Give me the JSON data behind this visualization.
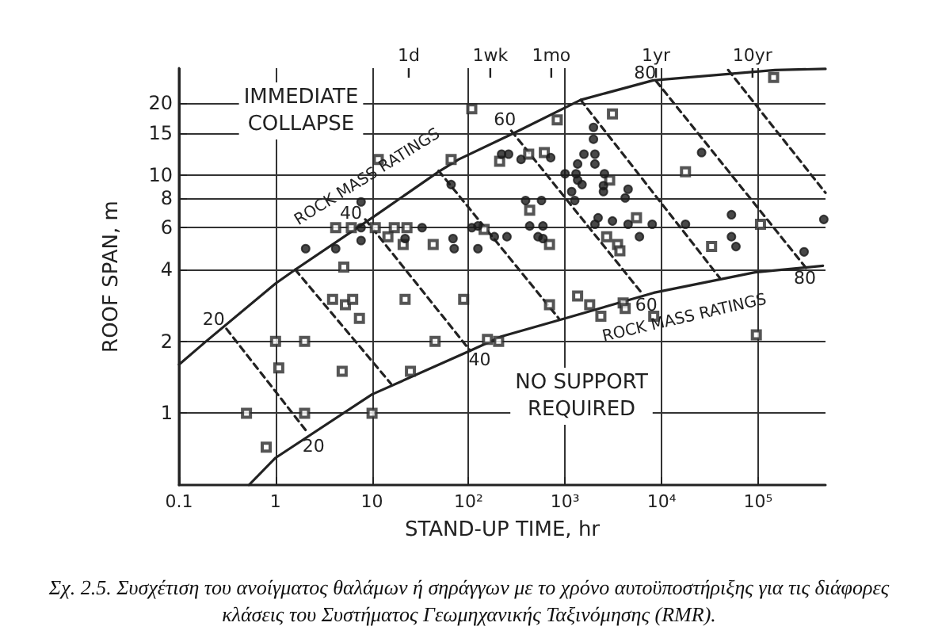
{
  "chart_data": {
    "type": "scatter",
    "xlabel": "STAND-UP TIME, hr",
    "ylabel": "ROOF SPAN, m",
    "log": "xy",
    "grid": true,
    "xlim": [
      0.1,
      500000
    ],
    "xticks": [
      {
        "value": 0.1,
        "label": "0.1"
      },
      1,
      10,
      {
        "value": 100,
        "label": "10²"
      },
      {
        "value": 1000,
        "label": "10³"
      },
      {
        "value": 10000,
        "label": "10⁴"
      },
      {
        "value": 100000,
        "label": "10⁵"
      }
    ],
    "ref_lines": [
      {
        "axis": "x",
        "value": 24,
        "label": "1d"
      },
      {
        "axis": "x",
        "value": 168,
        "label": "1wk"
      },
      {
        "axis": "x",
        "value": 720,
        "label": "1mo"
      },
      {
        "axis": "x",
        "value": 8760,
        "label": "1yr"
      },
      {
        "axis": "x",
        "value": 87600,
        "label": "10yr"
      }
    ],
    "ylim": [
      0.5,
      28
    ],
    "yticks": [
      1,
      2,
      4,
      6,
      8,
      10,
      15,
      20
    ],
    "series": [
      {
        "marker": "square",
        "color": "#2a2a2a",
        "x": [
          4.2,
          6.1,
          10.8,
          17,
          23,
          108,
          11.6,
          14.6,
          21,
          43,
          5.1,
          3.9,
          5.3,
          6.3,
          7.4,
          22,
          89,
          1,
          2,
          45,
          1.08,
          4.9,
          25,
          0.5,
          2,
          10,
          0.8,
          830,
          3100,
          145000,
          66,
          2900,
          5500,
          2700,
          3500,
          3700,
          33000,
          106000,
          17700,
          210,
          420,
          610,
          430,
          690,
          145,
          690,
          1350,
          1800,
          2350,
          4000,
          4200,
          8300,
          96000,
          157,
          205
        ],
        "values": [
          6,
          6,
          6,
          6,
          6,
          18.9,
          11.6,
          5.5,
          5.1,
          5.1,
          4.1,
          3,
          2.85,
          3,
          2.5,
          3,
          3,
          2,
          2,
          2,
          1.55,
          1.5,
          1.5,
          1,
          1,
          1,
          0.72,
          17,
          18,
          25.6,
          11.6,
          9.5,
          6.6,
          5.5,
          5.1,
          4.8,
          5,
          6.2,
          10.3,
          11.4,
          12.2,
          12.4,
          7.1,
          5.1,
          5.9,
          2.85,
          3.1,
          2.85,
          2.55,
          2.9,
          2.75,
          2.55,
          2.13,
          2.04,
          2
        ]
      },
      {
        "marker": "circle",
        "color": "#1a1a1a",
        "x": [
          66,
          7.7,
          7.7,
          33,
          108,
          2.05,
          4.2,
          7.7,
          22,
          71,
          69,
          1970,
          1970,
          1570,
          2040,
          1350,
          2040,
          1000,
          1300,
          1350,
          1500,
          2560,
          2500,
          2500,
          4500,
          4200,
          1170,
          1260,
          2200,
          3100,
          2040,
          4500,
          8000,
          5900,
          17700,
          26000,
          53000,
          53000,
          59000,
          300000,
          480000,
          220,
          260,
          350,
          710,
          390,
          570,
          430,
          590,
          525,
          590,
          125,
          185,
          250,
          125
        ],
        "values": [
          9.1,
          7.7,
          6,
          6,
          6,
          4.9,
          4.9,
          5.3,
          5.4,
          4.9,
          5.4,
          15.8,
          14.1,
          12.2,
          12.2,
          11.1,
          11.1,
          10.1,
          10.1,
          9.5,
          9.1,
          10.1,
          9,
          8.5,
          8.7,
          8,
          8.5,
          7.8,
          6.6,
          6.4,
          6.2,
          6.2,
          6.2,
          5.5,
          6.2,
          12.4,
          6.8,
          5.5,
          5,
          4.75,
          6.5,
          12.2,
          12.2,
          11.6,
          11.8,
          7.8,
          7.8,
          6.1,
          6.1,
          5.5,
          5.4,
          6.1,
          5.5,
          5.5,
          4.9
        ]
      },
      {
        "type": "line",
        "marker": "none",
        "line_style": "solid",
        "color": "#222222",
        "x": [
          0.1,
          0.19,
          1,
          1.6,
          10,
          49,
          79,
          300,
          1450,
          8200,
          150000,
          500000
        ],
        "values": [
          1.6,
          2,
          3.5,
          4,
          6.6,
          10.3,
          11.6,
          15,
          20.6,
          24.9,
          27.5,
          27.8
        ]
      },
      {
        "type": "line",
        "marker": "none",
        "line_style": "solid",
        "color": "#222222",
        "x": [
          0.53,
          1,
          10,
          104,
          220,
          1000,
          8300,
          93000,
          470000
        ],
        "values": [
          0.5,
          0.65,
          1.2,
          1.83,
          2.1,
          2.5,
          3.2,
          3.9,
          4.15
        ]
      },
      {
        "type": "line",
        "marker": "none",
        "line_style": "dashed",
        "color": "#222222",
        "x": [
          0.31,
          2.05
        ],
        "values": [
          2.26,
          0.85
        ]
      },
      {
        "type": "line",
        "marker": "none",
        "line_style": "dashed",
        "color": "#222222",
        "x": [
          1.6,
          15.7
        ],
        "values": [
          4,
          1.33
        ]
      },
      {
        "type": "line",
        "marker": "none",
        "line_style": "dashed",
        "color": "#222222",
        "x": [
          8.5,
          104
        ],
        "values": [
          6.5,
          1.83
        ]
      },
      {
        "type": "line",
        "marker": "none",
        "line_style": "dashed",
        "color": "#222222",
        "x": [
          49,
          860
        ],
        "values": [
          10.4,
          2.5
        ]
      },
      {
        "type": "line",
        "marker": "none",
        "line_style": "dashed",
        "color": "#222222",
        "x": [
          277,
          6200
        ],
        "values": [
          15.3,
          3.2
        ]
      },
      {
        "type": "line",
        "marker": "none",
        "line_style": "dashed",
        "color": "#222222",
        "x": [
          1450,
          40000
        ],
        "values": [
          20.6,
          3.7
        ]
      },
      {
        "type": "line",
        "marker": "none",
        "line_style": "dashed",
        "color": "#222222",
        "x": [
          8800,
          330000
        ],
        "values": [
          24.7,
          3.97
        ]
      },
      {
        "type": "line",
        "marker": "none",
        "line_style": "dashed",
        "color": "#222222",
        "x": [
          49000,
          500000
        ],
        "values": [
          27.5,
          8.4
        ]
      }
    ],
    "annotations": [
      {
        "text": "20",
        "x": 0.31,
        "y": 2.26
      },
      {
        "text": "20",
        "x": 2.05,
        "y": 0.85
      },
      {
        "text": "40",
        "x": 8.5,
        "y": 6.5
      },
      {
        "text": "40",
        "x": 104,
        "y": 1.83
      },
      {
        "text": "60",
        "x": 277,
        "y": 15.3
      },
      {
        "text": "60",
        "x": 6200,
        "y": 3.2
      },
      {
        "text": "80",
        "x": 8800,
        "y": 24.7
      },
      {
        "text": "80",
        "x": 330000,
        "y": 3.97
      },
      "ROCK MASS RATINGS",
      "ROCK MASS RATINGS",
      "IMMEDIATE\nCOLLAPSE",
      "NO SUPPORT\nREQUIRED",
      "Σχ. 2.5. Συσχέτιση του ανοίγματος θαλάμων ή σηράγγων με το χρόνο αυτοϋποστήριξης για τις διάφορες κλάσεις του Συστήματος Γεωμηχανικής Ταξινόμησης (RMR)."
    ]
  }
}
